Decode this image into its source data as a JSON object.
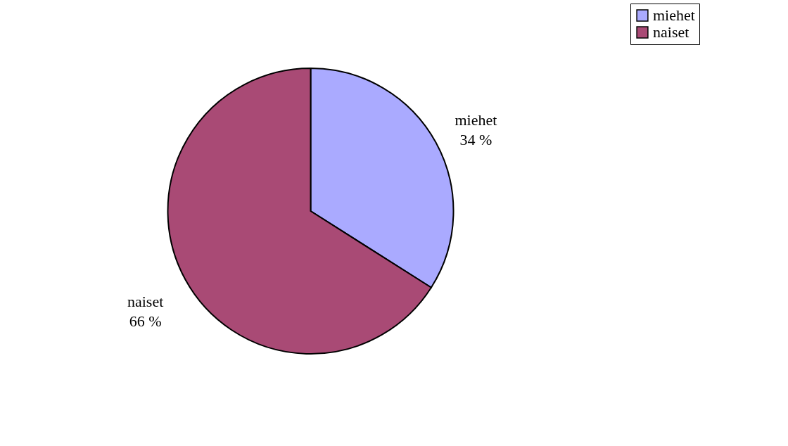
{
  "chart_data": {
    "type": "pie",
    "categories": [
      "miehet",
      "naiset"
    ],
    "values": [
      34,
      66
    ],
    "colors": [
      "#aaaaff",
      "#a94a75"
    ],
    "value_labels": [
      "34 %",
      "66 %"
    ],
    "legend": "right"
  }
}
